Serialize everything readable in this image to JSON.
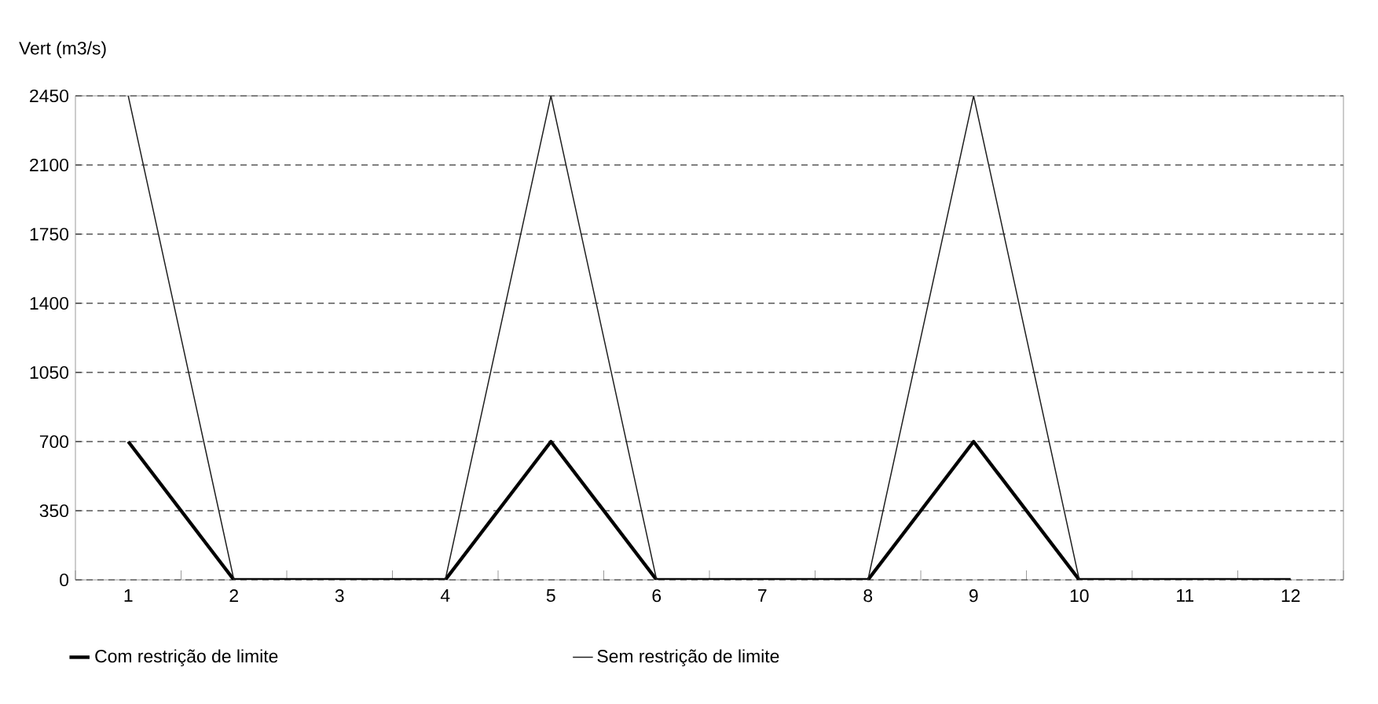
{
  "chart_data": {
    "type": "line",
    "ylabel": "Vert (m3/s)",
    "categories": [
      "1",
      "2",
      "3",
      "4",
      "5",
      "6",
      "7",
      "8",
      "9",
      "10",
      "11",
      "12"
    ],
    "series": [
      {
        "name": "Com restrição de limite",
        "color": "#000000",
        "values": [
          700,
          0,
          0,
          0,
          700,
          0,
          0,
          0,
          700,
          0,
          0,
          0
        ]
      },
      {
        "name": "Sem restrição de limite",
        "color": "#202020",
        "values": [
          2450,
          0,
          0,
          0,
          2450,
          0,
          0,
          0,
          2450,
          0,
          0,
          0
        ]
      }
    ],
    "ylim": [
      0,
      2450
    ],
    "yticks": [
      0,
      350,
      700,
      1050,
      1400,
      1750,
      2100,
      2450
    ],
    "grid": "y",
    "legend": "bottom",
    "marker": "none",
    "line_style": "solid"
  }
}
